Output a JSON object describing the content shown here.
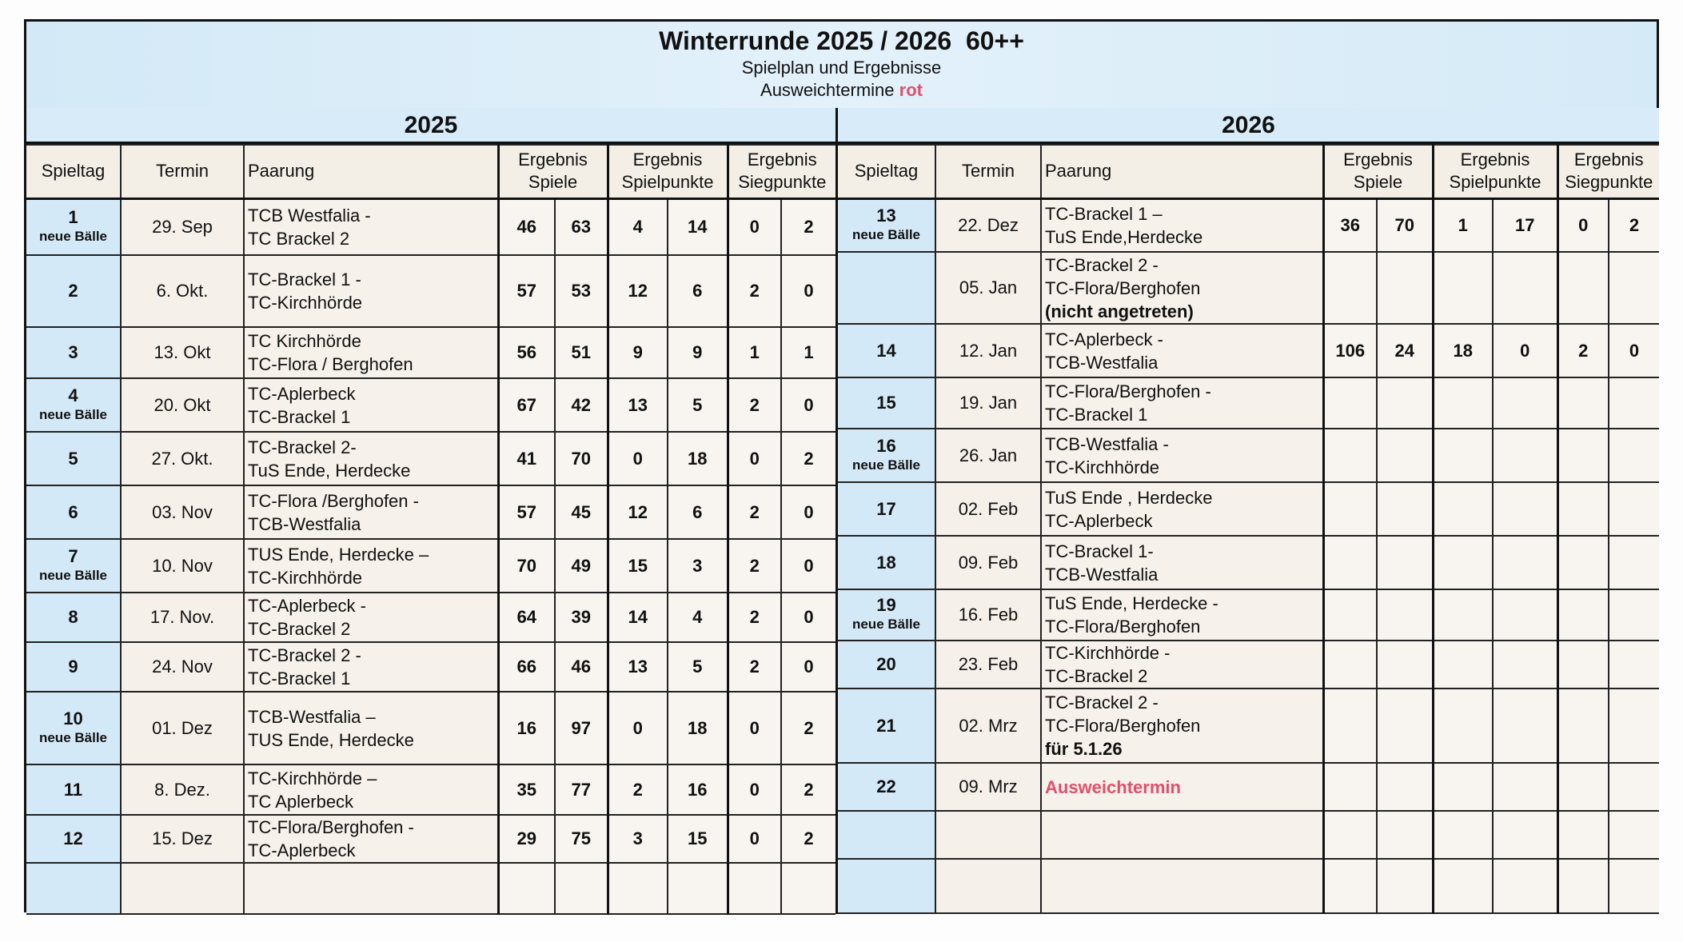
{
  "header": {
    "title": "Winterrunde 2025 / 2026  60++",
    "subtitle": "Spielplan und Ergebnisse",
    "note_prefix": "Ausweichtermine ",
    "note_red": "rot"
  },
  "colors": {
    "accent_red": "#e0506a",
    "header_blue": "#d4e9f7",
    "cell_cream": "#f5f0e9"
  },
  "columns": {
    "spieltag": "Spieltag",
    "termin": "Termin",
    "paarung": "Paarung",
    "spiele": [
      "Ergebnis",
      "Spiele"
    ],
    "spielpunkte": [
      "Ergebnis",
      "Spielpunkte"
    ],
    "siegpunkte": [
      "Ergebnis",
      "Siegpunkte"
    ]
  },
  "left": {
    "year": "2025",
    "rows": [
      {
        "spieltag": "1",
        "note": "neue Bälle",
        "termin": "29. Sep",
        "paarung": [
          {
            "t": "TCB Westfalia -"
          },
          {
            "t": "TC Brackel 2"
          }
        ],
        "results": [
          "46",
          "63",
          "4",
          "14",
          "0",
          "2"
        ]
      },
      {
        "spieltag": "2",
        "note": "",
        "termin": "6. Okt.",
        "paarung": [
          {
            "t": "TC-Brackel 1 -"
          },
          {
            "t": "TC-Kirchhörde"
          }
        ],
        "results": [
          "57",
          "53",
          "12",
          "6",
          "2",
          "0"
        ]
      },
      {
        "spieltag": "3",
        "note": "",
        "termin": "13. Okt",
        "paarung": [
          {
            "t": "TC Kirchhörde"
          },
          {
            "t": "TC-Flora / Berghofen"
          }
        ],
        "results": [
          "56",
          "51",
          "9",
          "9",
          "1",
          "1"
        ]
      },
      {
        "spieltag": "4",
        "note": "neue Bälle",
        "termin": "20. Okt",
        "paarung": [
          {
            "t": "TC-Aplerbeck"
          },
          {
            "t": "TC-Brackel 1"
          }
        ],
        "results": [
          "67",
          "42",
          "13",
          "5",
          "2",
          "0"
        ]
      },
      {
        "spieltag": "5",
        "note": "",
        "termin": "27. Okt.",
        "paarung": [
          {
            "t": "TC-Brackel 2-"
          },
          {
            "t": "TuS Ende, Herdecke"
          }
        ],
        "results": [
          "41",
          "70",
          "0",
          "18",
          "0",
          "2"
        ]
      },
      {
        "spieltag": "6",
        "note": "",
        "termin": "03. Nov",
        "paarung": [
          {
            "t": "TC-Flora /Berghofen -"
          },
          {
            "t": "TCB-Westfalia"
          }
        ],
        "results": [
          "57",
          "45",
          "12",
          "6",
          "2",
          "0"
        ]
      },
      {
        "spieltag": "7",
        "note": "neue Bälle",
        "termin": "10. Nov",
        "paarung": [
          {
            "t": "TUS Ende, Herdecke –"
          },
          {
            "t": "TC-Kirchhörde"
          }
        ],
        "results": [
          "70",
          "49",
          "15",
          "3",
          "2",
          "0"
        ]
      },
      {
        "spieltag": "8",
        "note": "",
        "termin": "17. Nov.",
        "paarung": [
          {
            "t": "TC-Aplerbeck -"
          },
          {
            "t": "TC-Brackel 2"
          }
        ],
        "results": [
          "64",
          "39",
          "14",
          "4",
          "2",
          "0"
        ]
      },
      {
        "spieltag": "9",
        "note": "",
        "termin": "24. Nov",
        "paarung": [
          {
            "t": "TC-Brackel 2 -"
          },
          {
            "t": "TC-Brackel 1"
          }
        ],
        "results": [
          "66",
          "46",
          "13",
          "5",
          "2",
          "0"
        ]
      },
      {
        "spieltag": "10",
        "note": "neue Bälle",
        "termin": "01. Dez",
        "paarung": [
          {
            "t": "TCB-Westfalia  –"
          },
          {
            "t": "TUS Ende, Herdecke"
          }
        ],
        "results": [
          "16",
          "97",
          "0",
          "18",
          "0",
          "2"
        ]
      },
      {
        "spieltag": "11",
        "note": "",
        "termin": "8. Dez.",
        "paarung": [
          {
            "t": "TC-Kirchhörde  –"
          },
          {
            "t": "TC Aplerbeck"
          }
        ],
        "results": [
          "35",
          "77",
          "2",
          "16",
          "0",
          "2"
        ]
      },
      {
        "spieltag": "12",
        "note": "",
        "termin": "15. Dez",
        "paarung": [
          {
            "t": "TC-Flora/Berghofen -"
          },
          {
            "t": "TC-Aplerbeck"
          }
        ],
        "results": [
          "29",
          "75",
          "3",
          "15",
          "0",
          "2"
        ]
      },
      {
        "spieltag": "",
        "note": "",
        "termin": "",
        "paarung": [],
        "results": [
          "",
          "",
          "",
          "",
          "",
          ""
        ]
      }
    ]
  },
  "right": {
    "year": "2026",
    "rows": [
      {
        "spieltag": "13",
        "note": "neue Bälle",
        "termin": "22. Dez",
        "paarung": [
          {
            "t": "TC-Brackel 1 –"
          },
          {
            "t": "TuS Ende,Herdecke"
          }
        ],
        "results": [
          "36",
          "70",
          "1",
          "17",
          "0",
          "2"
        ]
      },
      {
        "spieltag": "",
        "note": "",
        "termin": "05. Jan",
        "paarung": [
          {
            "t": "TC-Brackel 2 -"
          },
          {
            "t": "TC-Flora/Berghofen"
          },
          {
            "t": "(nicht angetreten)",
            "s": "bold"
          }
        ],
        "results": [
          "",
          "",
          "",
          "",
          "",
          ""
        ]
      },
      {
        "spieltag": "14",
        "note": "",
        "termin": "12. Jan",
        "paarung": [
          {
            "t": "TC-Aplerbeck -"
          },
          {
            "t": "TCB-Westfalia"
          }
        ],
        "results": [
          "106",
          "24",
          "18",
          "0",
          "2",
          "0"
        ]
      },
      {
        "spieltag": "15",
        "note": "",
        "termin": "19. Jan",
        "paarung": [
          {
            "t": "TC-Flora/Berghofen -"
          },
          {
            "t": "TC-Brackel 1"
          }
        ],
        "results": [
          "",
          "",
          "",
          "",
          "",
          ""
        ]
      },
      {
        "spieltag": "16",
        "note": "neue Bälle",
        "termin": "26. Jan",
        "paarung": [
          {
            "t": "TCB-Westfalia -"
          },
          {
            "t": "TC-Kirchhörde"
          }
        ],
        "results": [
          "",
          "",
          "",
          "",
          "",
          ""
        ]
      },
      {
        "spieltag": "17",
        "note": "",
        "termin": "02. Feb",
        "paarung": [
          {
            "t": "TuS Ende , Herdecke"
          },
          {
            "t": "TC-Aplerbeck"
          }
        ],
        "results": [
          "",
          "",
          "",
          "",
          "",
          ""
        ]
      },
      {
        "spieltag": "18",
        "note": "",
        "termin": "09. Feb",
        "paarung": [
          {
            "t": "TC-Brackel 1-"
          },
          {
            "t": "TCB-Westfalia"
          }
        ],
        "results": [
          "",
          "",
          "",
          "",
          "",
          ""
        ]
      },
      {
        "spieltag": "19",
        "note": "neue Bälle",
        "termin": "16. Feb",
        "paarung": [
          {
            "t": "TuS Ende, Herdecke -"
          },
          {
            "t": "TC-Flora/Berghofen"
          }
        ],
        "results": [
          "",
          "",
          "",
          "",
          "",
          ""
        ]
      },
      {
        "spieltag": "20",
        "note": "",
        "termin": "23. Feb",
        "paarung": [
          {
            "t": "TC-Kirchhörde  -"
          },
          {
            "t": "TC-Brackel 2"
          }
        ],
        "results": [
          "",
          "",
          "",
          "",
          "",
          ""
        ]
      },
      {
        "spieltag": "21",
        "note": "",
        "termin": "02. Mrz",
        "paarung": [
          {
            "t": "TC-Brackel 2 -"
          },
          {
            "t": "TC-Flora/Berghofen"
          },
          {
            "t": "für 5.1.26",
            "s": "bold"
          }
        ],
        "results": [
          "",
          "",
          "",
          "",
          "",
          ""
        ]
      },
      {
        "spieltag": "22",
        "note": "",
        "termin": "09. Mrz",
        "paarung": [
          {
            "t": "Ausweichtermin",
            "s": "red"
          }
        ],
        "results": [
          "",
          "",
          "",
          "",
          "",
          ""
        ]
      },
      {
        "spieltag": "",
        "note": "",
        "termin": "",
        "paarung": [],
        "results": [
          "",
          "",
          "",
          "",
          "",
          ""
        ]
      },
      {
        "spieltag": "",
        "note": "",
        "termin": "",
        "paarung": [],
        "results": [
          "",
          "",
          "",
          "",
          "",
          ""
        ]
      }
    ]
  }
}
